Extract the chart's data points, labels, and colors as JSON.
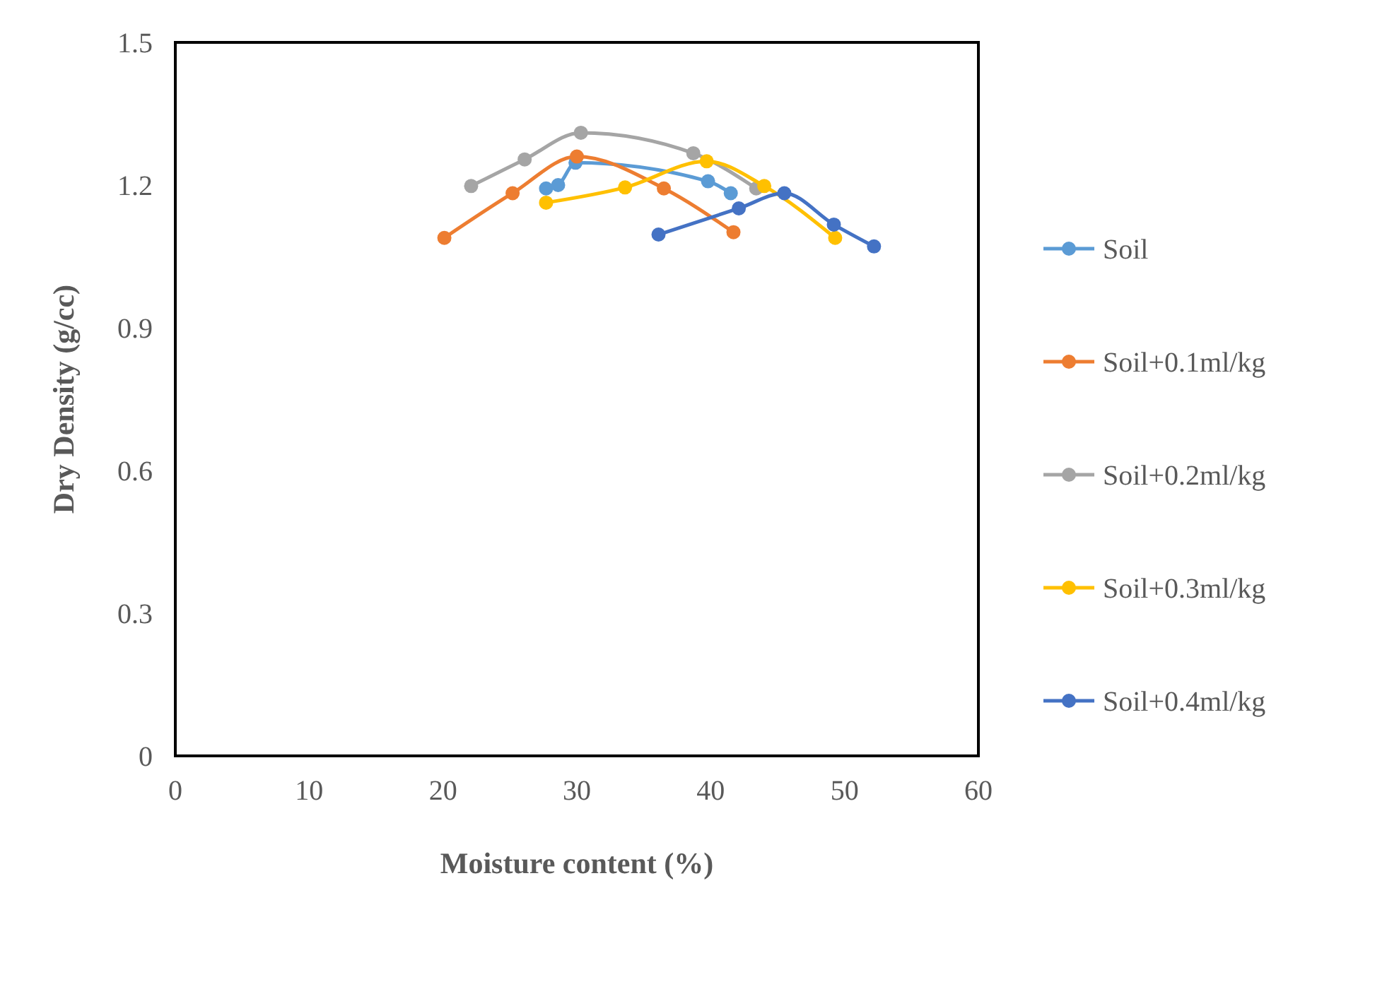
{
  "chart_data": {
    "type": "line",
    "xlabel": "Moisture content (%)",
    "ylabel": "Dry Density (g/cc)",
    "xlim": [
      0,
      60
    ],
    "xticks": [
      0,
      10,
      20,
      30,
      40,
      50,
      60
    ],
    "ylim": [
      0,
      1.5
    ],
    "yticks": [
      0,
      0.3,
      0.6,
      0.9,
      1.2,
      1.5
    ],
    "grid": false,
    "legend": "right",
    "marker": "circle",
    "line_style": "solid",
    "series": [
      {
        "name": "Soil",
        "color": "#5b9bd5",
        "x": [
          27.7,
          28.6,
          29.9,
          39.8,
          41.5
        ],
        "values": [
          1.193,
          1.2,
          1.247,
          1.208,
          1.183
        ]
      },
      {
        "name": "Soil+0.1ml/kg",
        "color": "#ed7d31",
        "x": [
          20.1,
          25.2,
          30.0,
          36.5,
          41.7
        ],
        "values": [
          1.089,
          1.183,
          1.26,
          1.193,
          1.101
        ]
      },
      {
        "name": "Soil+0.2ml/kg",
        "color": "#a5a5a5",
        "x": [
          22.1,
          26.1,
          30.3,
          38.7,
          43.4
        ],
        "values": [
          1.198,
          1.254,
          1.31,
          1.267,
          1.193
        ]
      },
      {
        "name": "Soil+0.3ml/kg",
        "color": "#ffc000",
        "x": [
          27.7,
          33.6,
          39.7,
          44.0,
          49.3
        ],
        "values": [
          1.163,
          1.195,
          1.25,
          1.198,
          1.089
        ]
      },
      {
        "name": "Soil+0.4ml/kg",
        "color": "#4472c4",
        "x": [
          36.1,
          42.1,
          45.5,
          49.2,
          52.2
        ],
        "values": [
          1.096,
          1.151,
          1.183,
          1.117,
          1.071
        ]
      }
    ]
  }
}
